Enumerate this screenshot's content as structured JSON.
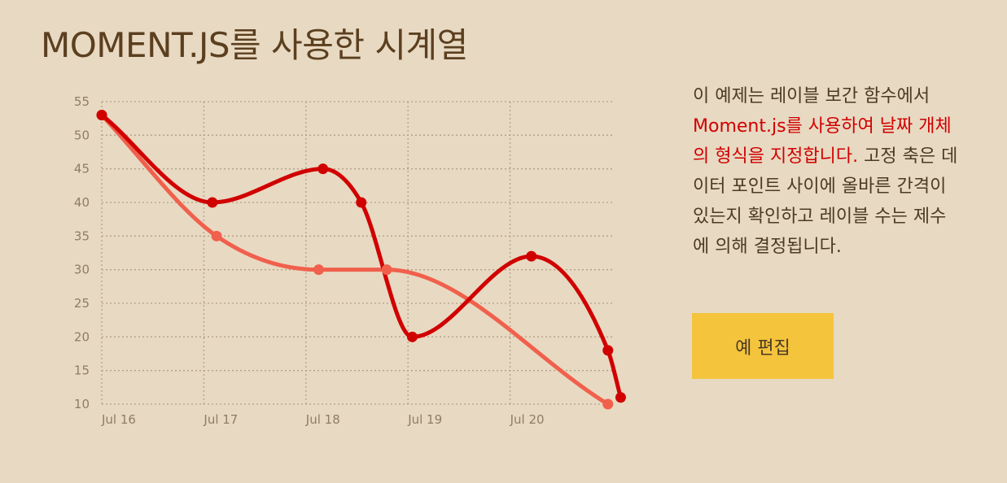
{
  "page": {
    "title": "MOMENT.JS를 사용한 시계열"
  },
  "description": {
    "before": "이 예제는 레이블 보간 함수에서 ",
    "highlight": "Moment.js를 사용하여 날짜 개체의 형식을 지정합니다.",
    "after": " 고정 축은 데이터 포인트 사이에 올바른 간격이 있는지 확인하고 레이블 수는 제수에 의해 결정됩니다."
  },
  "edit_button": {
    "label": "예 편집"
  },
  "colors": {
    "background": "#e8d9c2",
    "series_dark": "#d10000",
    "series_light": "#f0604c",
    "grid": "#b3a189",
    "axis_text": "#8f7d66",
    "button": "#f4c43c"
  },
  "chart_data": {
    "type": "line",
    "x_axis_type": "date",
    "x_ticks": [
      {
        "value": "2015-07-16",
        "label": "Jul 16"
      },
      {
        "value": "2015-07-17",
        "label": "Jul 17"
      },
      {
        "value": "2015-07-18",
        "label": "Jul 18"
      },
      {
        "value": "2015-07-19",
        "label": "Jul 19"
      },
      {
        "value": "2015-07-20",
        "label": "Jul 20"
      }
    ],
    "xlim": [
      "2015-07-16",
      "2015-07-21"
    ],
    "ylim": [
      10,
      55
    ],
    "y_ticks": [
      10,
      15,
      20,
      25,
      30,
      35,
      40,
      45,
      50,
      55
    ],
    "grid": true,
    "series": [
      {
        "color": "#d10000",
        "points": [
          {
            "x": "2015-07-16 00:00",
            "y": 53
          },
          {
            "x": "2015-07-17 02:00",
            "y": 40
          },
          {
            "x": "2015-07-18 04:00",
            "y": 45
          },
          {
            "x": "2015-07-18 13:00",
            "y": 40
          },
          {
            "x": "2015-07-19 01:00",
            "y": 20
          },
          {
            "x": "2015-07-20 05:00",
            "y": 32
          },
          {
            "x": "2015-07-20 23:00",
            "y": 18
          },
          {
            "x": "2015-07-21 02:00",
            "y": 11
          }
        ]
      },
      {
        "color": "#f0604c",
        "points": [
          {
            "x": "2015-07-16 00:00",
            "y": 53
          },
          {
            "x": "2015-07-17 03:00",
            "y": 35
          },
          {
            "x": "2015-07-18 03:00",
            "y": 30
          },
          {
            "x": "2015-07-18 19:00",
            "y": 30
          },
          {
            "x": "2015-07-20 23:00",
            "y": 10
          }
        ]
      }
    ]
  }
}
